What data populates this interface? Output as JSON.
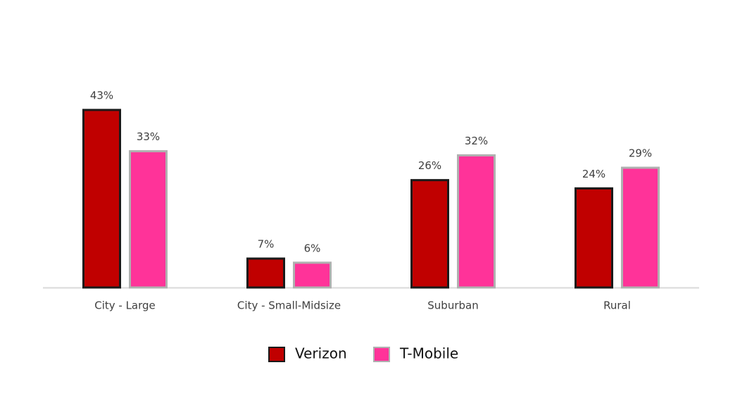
{
  "chart_data": {
    "type": "bar",
    "categories": [
      "City - Large",
      "City - Small-Midsize",
      "Suburban",
      "Rural"
    ],
    "series": [
      {
        "name": "Verizon",
        "color": "#c00000",
        "values": [
          43,
          7,
          26,
          24
        ],
        "value_labels": [
          "43%",
          "7%",
          "26%",
          "24%"
        ]
      },
      {
        "name": "T-Mobile",
        "color": "#ff3399",
        "values": [
          33,
          6,
          32,
          29
        ],
        "value_labels": [
          "33%",
          "6%",
          "32%",
          "29%"
        ]
      }
    ]
  }
}
